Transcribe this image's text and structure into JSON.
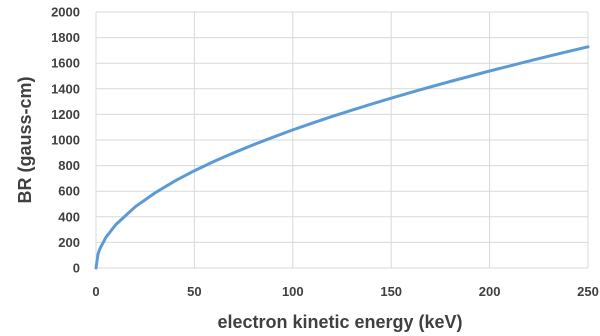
{
  "chart_data": {
    "type": "line",
    "title": "",
    "xlabel": "electron kinetic energy (keV)",
    "ylabel": "BR (gauss-cm)",
    "xlim": [
      0,
      250
    ],
    "ylim": [
      0,
      2000
    ],
    "x_ticks": [
      0,
      50,
      100,
      150,
      200,
      250
    ],
    "y_ticks": [
      0,
      200,
      400,
      600,
      800,
      1000,
      1200,
      1400,
      1600,
      1800,
      2000
    ],
    "x_tick_labels": [
      "0",
      "50",
      "100",
      "150",
      "200",
      "250"
    ],
    "y_tick_labels": [
      "0",
      "200",
      "400",
      "600",
      "800",
      "1000",
      "1200",
      "1400",
      "1600",
      "1800",
      "2000"
    ],
    "grid": true,
    "line_color": "#5b9bd5",
    "series": [
      {
        "x": [
          0,
          1,
          2,
          5,
          10,
          20,
          30,
          40,
          50,
          60,
          70,
          80,
          90,
          100,
          110,
          120,
          130,
          140,
          150,
          160,
          170,
          180,
          190,
          200,
          210,
          220,
          230,
          240,
          250
        ],
        "y": [
          0,
          107,
          151,
          239,
          338,
          479,
          587,
          679,
          760,
          833,
          900,
          963,
          1022,
          1079,
          1132,
          1184,
          1233,
          1281,
          1327,
          1372,
          1415,
          1457,
          1498,
          1539,
          1578,
          1617,
          1655,
          1692,
          1728
        ]
      }
    ]
  }
}
